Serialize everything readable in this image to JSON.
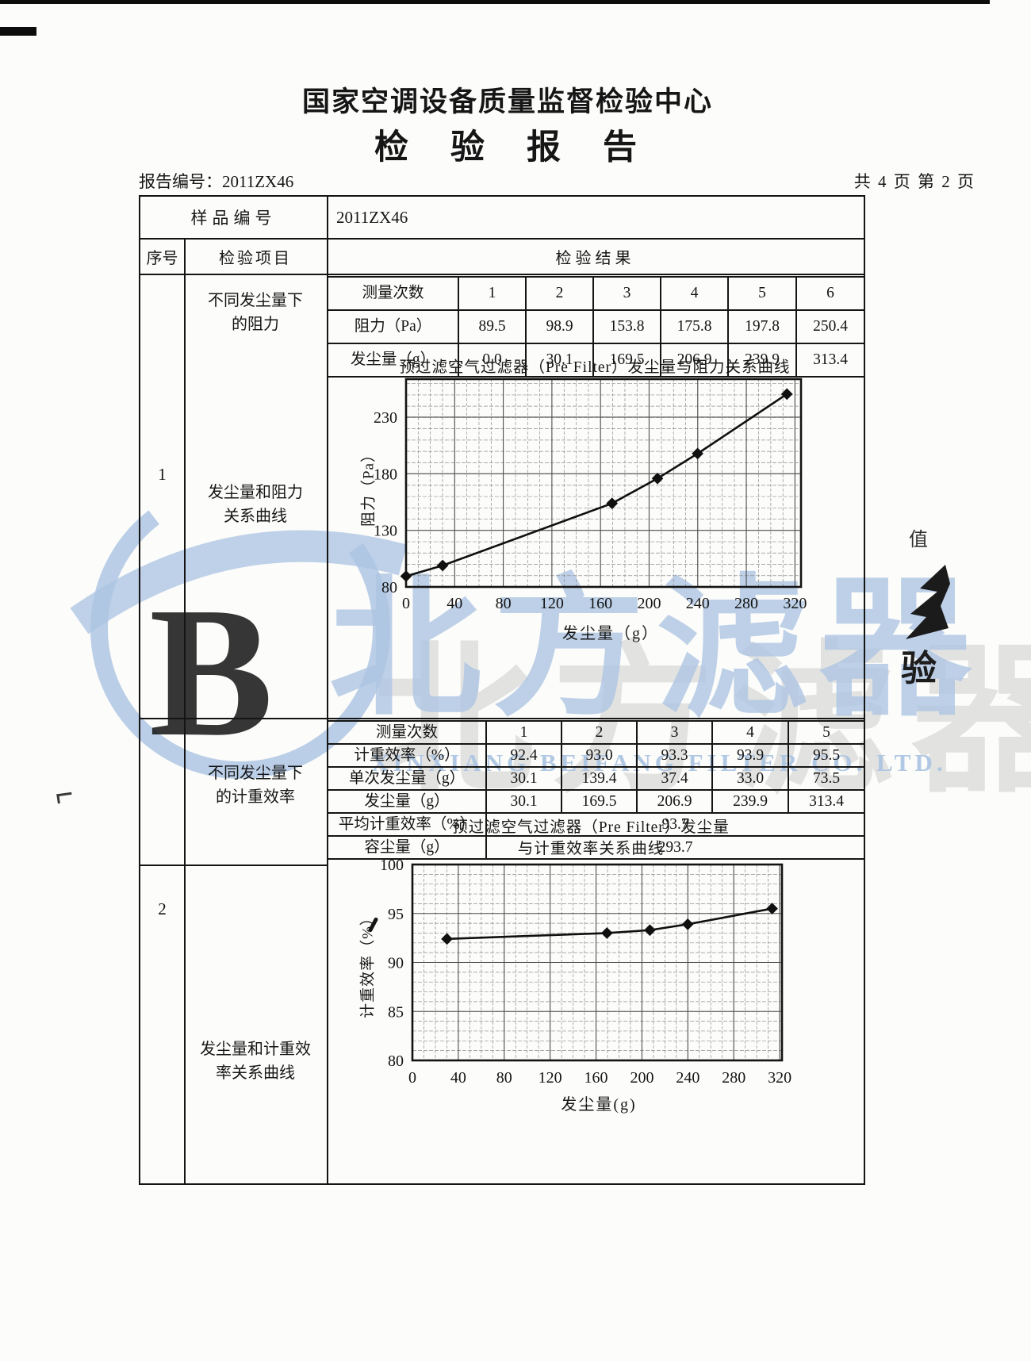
{
  "header": {
    "org_title": "国家空调设备质量监督检验中心",
    "report_title": "检　验　报　告",
    "report_no": "报告编号：2011ZX46",
    "page_info": "共 4 页 第 2 页"
  },
  "table": {
    "sample_label": "样品编号",
    "sample_value": "2011ZX46",
    "col_seq": "序号",
    "col_item": "检验项目",
    "col_result": "检验结果"
  },
  "section1": {
    "seq": "1",
    "item_label_lines": [
      "不同发尘量下",
      "的阻力"
    ],
    "curve_label_lines": [
      "发尘量和阻力",
      "关系曲线"
    ],
    "rows": [
      {
        "label": "测量次数",
        "values": [
          "1",
          "2",
          "3",
          "4",
          "5",
          "6"
        ]
      },
      {
        "label": "阻力（Pa）",
        "values": [
          "89.5",
          "98.9",
          "153.8",
          "175.8",
          "197.8",
          "250.4"
        ]
      },
      {
        "label": "发尘量（g）",
        "values": [
          "0.0",
          "30.1",
          "169.5",
          "206.9",
          "239.9",
          "313.4"
        ]
      }
    ]
  },
  "section2": {
    "seq": "2",
    "item_label_lines": [
      "不同发尘量下",
      "的计重效率"
    ],
    "curve_label_lines": [
      "发尘量和计重效",
      "率关系曲线"
    ],
    "rows": [
      {
        "label": "测量次数",
        "values": [
          "1",
          "2",
          "3",
          "4",
          "5"
        ]
      },
      {
        "label": "计重效率（%）",
        "values": [
          "92.4",
          "93.0",
          "93.3",
          "93.9",
          "95.5"
        ]
      },
      {
        "label": "单次发尘量（g）",
        "values": [
          "30.1",
          "139.4",
          "37.4",
          "33.0",
          "73.5"
        ]
      },
      {
        "label": "发尘量（g）",
        "values": [
          "30.1",
          "169.5",
          "206.9",
          "239.9",
          "313.4"
        ]
      }
    ],
    "merged_rows": [
      {
        "label": "平均计重效率（%）",
        "value": "93.7"
      },
      {
        "label": "容尘量（g）",
        "value": "293.7"
      }
    ]
  },
  "chart_data": [
    {
      "type": "line",
      "title_lines": [
        "预过滤空气过滤器（Pre Filter）发尘量与阻力关系曲线"
      ],
      "xlabel": "发尘量（g）",
      "ylabel": "阻力（Pa）",
      "x": [
        0,
        30.1,
        169.5,
        206.9,
        239.9,
        313.4
      ],
      "y": [
        89.5,
        98.9,
        153.8,
        175.8,
        197.8,
        250.4
      ],
      "xticks": [
        0,
        40,
        80,
        120,
        160,
        200,
        240,
        280,
        320
      ],
      "yticks": [
        80,
        130,
        180,
        230
      ],
      "xlim": [
        0,
        325
      ],
      "ylim": [
        80,
        263.6
      ],
      "grid": true,
      "marker": "diamond",
      "legend": "none"
    },
    {
      "type": "line",
      "title_lines": [
        "预过滤空气过滤器（Pre Filter）发尘量",
        "与计重效率关系曲线"
      ],
      "xlabel": "发尘量(g)",
      "ylabel": "计重效率（%）",
      "x": [
        30.1,
        169.5,
        206.9,
        239.9,
        313.4
      ],
      "y": [
        92.4,
        93.0,
        93.3,
        93.9,
        95.5
      ],
      "xticks": [
        0,
        40,
        80,
        120,
        160,
        200,
        240,
        280,
        320
      ],
      "yticks": [
        80,
        85,
        90,
        95,
        100
      ],
      "xlim": [
        0,
        322
      ],
      "ylim": [
        80,
        100
      ],
      "grid": true,
      "marker": "diamond",
      "legend": "none"
    }
  ],
  "watermark": {
    "cn_text": "北方滤器",
    "en_text": "XINXIANG BEIFANG FILTER CO. LTD.",
    "blue": "#aec6e3",
    "gray": "#c9c9c9"
  },
  "artifacts": {
    "edge_glyph_top": "值",
    "edge_glyph_stamp": "验"
  }
}
